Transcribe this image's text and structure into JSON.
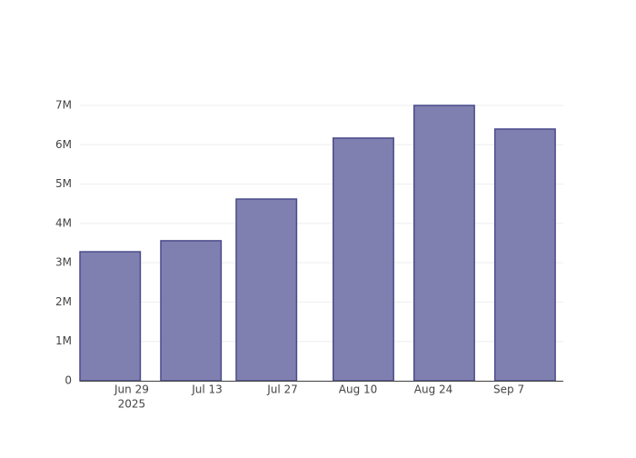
{
  "chart_data": {
    "type": "bar",
    "x": [
      "2025-06-25",
      "2025-07-10",
      "2025-07-24",
      "2025-08-11",
      "2025-08-26",
      "2025-09-10"
    ],
    "values": [
      3280000,
      3560000,
      4620000,
      6170000,
      7000000,
      6400000
    ],
    "color": "#8080b0",
    "edge_color": "#4b4b8c",
    "xlim": [
      "2025-06-19T09:36:00Z",
      "2025-09-17T02:24:00Z"
    ],
    "xticks": [
      {
        "value": "2025-06-29",
        "label": "Jun 29"
      },
      {
        "value": "2025-07-13",
        "label": "Jul 13"
      },
      {
        "value": "2025-07-27",
        "label": "Jul 27"
      },
      {
        "value": "2025-08-10",
        "label": "Aug 10"
      },
      {
        "value": "2025-08-24",
        "label": "Aug 24"
      },
      {
        "value": "2025-09-07",
        "label": "Sep 7"
      }
    ],
    "xtick_year": "2025",
    "ylim": [
      0,
      7370000
    ],
    "yticks": [
      0,
      {
        "value": 1000000,
        "label": "1M"
      },
      {
        "value": 2000000,
        "label": "2M"
      },
      {
        "value": 3000000,
        "label": "3M"
      },
      {
        "value": 4000000,
        "label": "4M"
      },
      {
        "value": 5000000,
        "label": "5M"
      },
      {
        "value": 6000000,
        "label": "6M"
      },
      {
        "value": 7000000,
        "label": "7M"
      }
    ],
    "grid": true
  }
}
